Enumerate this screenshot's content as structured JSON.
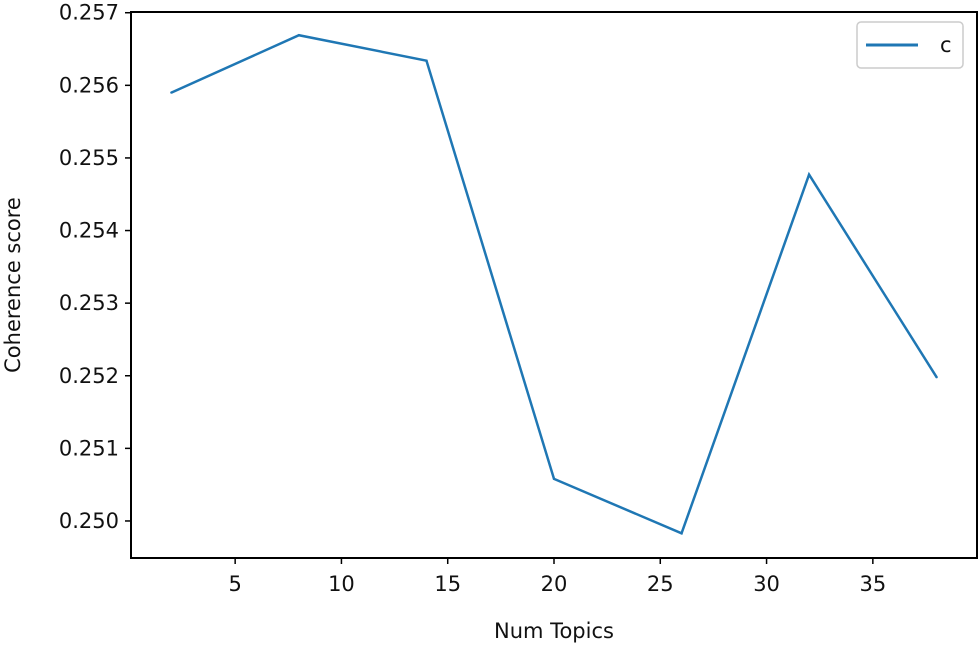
{
  "chart_data": {
    "type": "line",
    "title": "",
    "xlabel": "Num Topics",
    "ylabel": "Coherence score",
    "xlim": [
      0.1,
      39.9
    ],
    "ylim": [
      0.24949,
      0.25701
    ],
    "xticks": [
      5,
      10,
      15,
      20,
      25,
      30,
      35
    ],
    "yticks": [
      0.25,
      0.251,
      0.252,
      0.253,
      0.254,
      0.255,
      0.256,
      0.257
    ],
    "ytick_labels": [
      "0.250",
      "0.251",
      "0.252",
      "0.253",
      "0.254",
      "0.255",
      "0.256",
      "0.257"
    ],
    "grid": false,
    "legend_position": "top-right",
    "series": [
      {
        "name": "c",
        "color": "#1f77b4",
        "x": [
          2,
          8,
          14,
          20,
          26,
          32,
          38
        ],
        "y": [
          0.2559,
          0.25669,
          0.25634,
          0.25058,
          0.24983,
          0.25477,
          0.25198
        ]
      }
    ]
  }
}
